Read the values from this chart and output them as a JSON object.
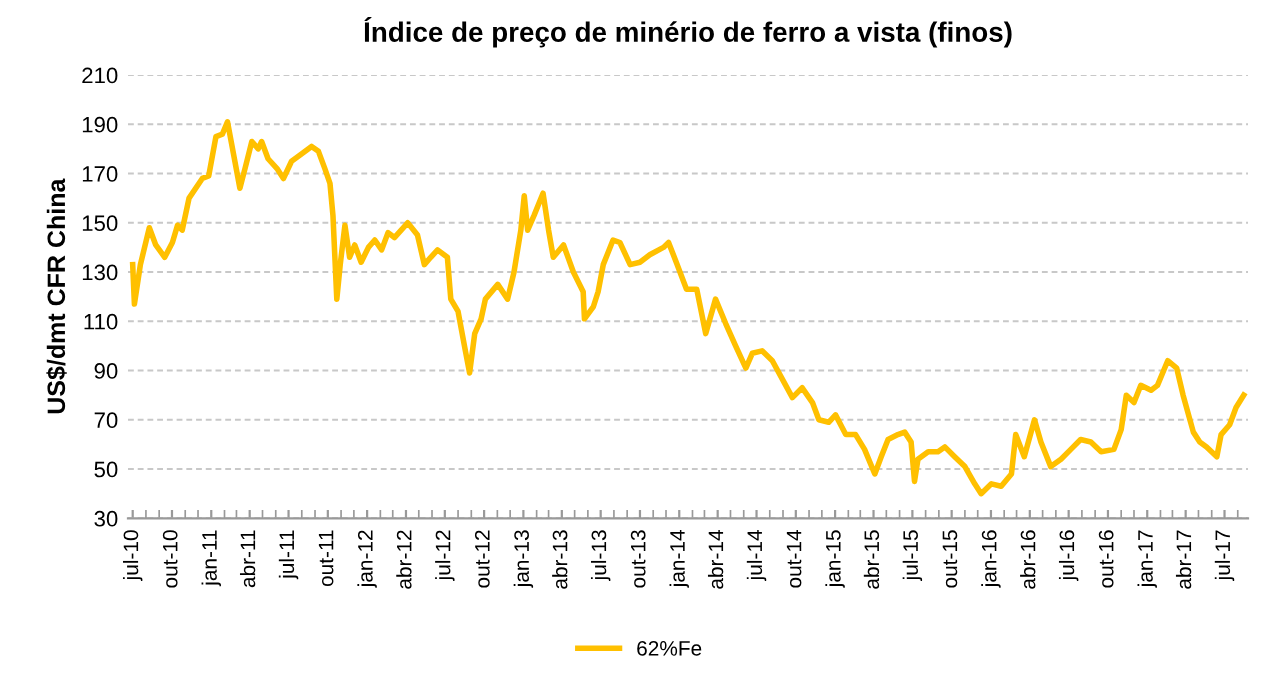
{
  "chart_data": {
    "type": "line",
    "title": "Índice de preço de minério de ferro a vista (finos)",
    "ylabel": "US$/dmt CFR China",
    "x": [
      "2010-07-01",
      "2010-07-05",
      "2010-07-19",
      "2010-08-09",
      "2010-08-24",
      "2010-09-14",
      "2010-10-02",
      "2010-10-14",
      "2010-10-25",
      "2010-11-10",
      "2010-12-11",
      "2010-12-26",
      "2011-01-12",
      "2011-01-27",
      "2011-02-08",
      "2011-02-22",
      "2011-03-09",
      "2011-03-21",
      "2011-04-06",
      "2011-04-21",
      "2011-04-29",
      "2011-05-14",
      "2011-06-04",
      "2011-06-19",
      "2011-07-08",
      "2011-08-01",
      "2011-08-24",
      "2011-09-09",
      "2011-09-24",
      "2011-10-06",
      "2011-10-13",
      "2011-10-22",
      "2011-10-30",
      "2011-11-10",
      "2011-11-21",
      "2011-12-03",
      "2011-12-18",
      "2012-01-04",
      "2012-01-19",
      "2012-02-04",
      "2012-02-19",
      "2012-03-05",
      "2012-04-05",
      "2012-04-28",
      "2012-05-14",
      "2012-05-29",
      "2012-06-14",
      "2012-07-07",
      "2012-07-15",
      "2012-08-01",
      "2012-08-16",
      "2012-08-28",
      "2012-09-09",
      "2012-09-24",
      "2012-10-04",
      "2012-11-02",
      "2012-11-25",
      "2012-12-10",
      "2012-12-26",
      "2013-01-03",
      "2013-01-11",
      "2013-01-26",
      "2013-02-16",
      "2013-03-01",
      "2013-03-12",
      "2013-04-05",
      "2013-04-28",
      "2013-05-21",
      "2013-05-24",
      "2013-06-14",
      "2013-06-25",
      "2013-07-07",
      "2013-07-30",
      "2013-08-15",
      "2013-09-08",
      "2013-10-01",
      "2013-10-24",
      "2013-11-25",
      "2013-12-07",
      "2013-12-25",
      "2014-01-18",
      "2014-02-11",
      "2014-03-04",
      "2014-03-27",
      "2014-04-20",
      "2014-05-13",
      "2014-06-06",
      "2014-06-21",
      "2014-07-14",
      "2014-08-07",
      "2014-09-01",
      "2014-09-23",
      "2014-10-16",
      "2014-11-09",
      "2014-11-24",
      "2014-12-17",
      "2015-01-02",
      "2015-01-26",
      "2015-02-18",
      "2015-03-11",
      "2015-04-04",
      "2015-04-19",
      "2015-05-05",
      "2015-05-28",
      "2015-06-13",
      "2015-06-28",
      "2015-07-06",
      "2015-07-14",
      "2015-08-07",
      "2015-08-30",
      "2015-09-15",
      "2015-10-08",
      "2015-11-01",
      "2015-11-24",
      "2015-12-09",
      "2016-01-02",
      "2016-01-25",
      "2016-02-18",
      "2016-02-28",
      "2016-03-19",
      "2016-04-12",
      "2016-04-27",
      "2016-05-20",
      "2016-06-13",
      "2016-07-06",
      "2016-07-29",
      "2016-08-22",
      "2016-09-15",
      "2016-10-15",
      "2016-11-01",
      "2016-11-13",
      "2016-12-01",
      "2016-12-17",
      "2017-01-10",
      "2017-01-25",
      "2017-02-18",
      "2017-03-11",
      "2017-03-26",
      "2017-04-19",
      "2017-05-04",
      "2017-05-20",
      "2017-06-13",
      "2017-06-23",
      "2017-07-13",
      "2017-07-28",
      "2017-08-15"
    ],
    "series": [
      {
        "name": "62%Fe",
        "color": "#ffc000",
        "values": [
          133,
          117,
          133,
          148,
          141,
          136,
          142,
          149,
          147,
          160,
          168,
          169,
          185,
          186,
          191,
          178,
          164,
          172,
          183,
          180,
          183,
          176,
          172,
          168,
          175,
          178,
          181,
          179,
          172,
          166,
          153,
          119,
          133,
          149,
          136,
          141,
          134,
          140,
          143,
          139,
          146,
          144,
          150,
          145,
          133,
          136,
          139,
          136,
          119,
          114,
          100,
          89,
          105,
          111,
          119,
          125,
          119,
          130,
          147,
          161,
          147,
          153,
          162,
          147,
          136,
          141,
          130,
          122,
          111,
          116,
          122,
          133,
          143,
          142,
          133,
          134,
          137,
          140,
          142,
          134,
          123,
          123,
          105,
          119,
          109,
          100,
          91,
          97,
          98,
          94,
          86,
          79,
          83,
          77,
          70,
          69,
          72,
          64,
          64,
          58,
          48,
          55,
          62,
          64,
          65,
          61,
          45,
          54,
          57,
          57,
          59,
          55,
          51,
          44,
          40,
          44,
          43,
          48,
          64,
          55,
          70,
          61,
          51,
          54,
          58,
          62,
          61,
          57,
          58,
          66,
          80,
          77,
          84,
          82,
          84,
          94,
          91,
          80,
          65,
          61,
          59,
          55,
          64,
          68,
          75,
          80
        ]
      }
    ],
    "ylim": [
      30,
      210
    ],
    "yticks": [
      30,
      50,
      70,
      90,
      110,
      130,
      150,
      170,
      190,
      210
    ],
    "xlim": [
      "2010-06-20",
      "2017-08-25"
    ],
    "xticks": [
      {
        "value": "2010-07-01",
        "label": "jul-10"
      },
      {
        "value": "2010-10-01",
        "label": "out-10"
      },
      {
        "value": "2011-01-01",
        "label": "jan-11"
      },
      {
        "value": "2011-04-01",
        "label": "abr-11"
      },
      {
        "value": "2011-07-01",
        "label": "jul-11"
      },
      {
        "value": "2011-10-01",
        "label": "out-11"
      },
      {
        "value": "2012-01-01",
        "label": "jan-12"
      },
      {
        "value": "2012-04-01",
        "label": "abr-12"
      },
      {
        "value": "2012-07-01",
        "label": "jul-12"
      },
      {
        "value": "2012-10-01",
        "label": "out-12"
      },
      {
        "value": "2013-01-01",
        "label": "jan-13"
      },
      {
        "value": "2013-04-01",
        "label": "abr-13"
      },
      {
        "value": "2013-07-01",
        "label": "jul-13"
      },
      {
        "value": "2013-10-01",
        "label": "out-13"
      },
      {
        "value": "2014-01-01",
        "label": "jan-14"
      },
      {
        "value": "2014-04-01",
        "label": "abr-14"
      },
      {
        "value": "2014-07-01",
        "label": "jul-14"
      },
      {
        "value": "2014-10-01",
        "label": "out-14"
      },
      {
        "value": "2015-01-01",
        "label": "jan-15"
      },
      {
        "value": "2015-04-01",
        "label": "abr-15"
      },
      {
        "value": "2015-07-01",
        "label": "jul-15"
      },
      {
        "value": "2015-10-01",
        "label": "out-15"
      },
      {
        "value": "2016-01-01",
        "label": "jan-16"
      },
      {
        "value": "2016-04-01",
        "label": "abr-16"
      },
      {
        "value": "2016-07-01",
        "label": "jul-16"
      },
      {
        "value": "2016-10-01",
        "label": "out-16"
      },
      {
        "value": "2017-01-01",
        "label": "jan-17"
      },
      {
        "value": "2017-04-01",
        "label": "abr-17"
      },
      {
        "value": "2017-07-01",
        "label": "jul-17"
      }
    ],
    "grid": "y",
    "legend": "bottom",
    "line_style": "solid",
    "marker": "none"
  }
}
